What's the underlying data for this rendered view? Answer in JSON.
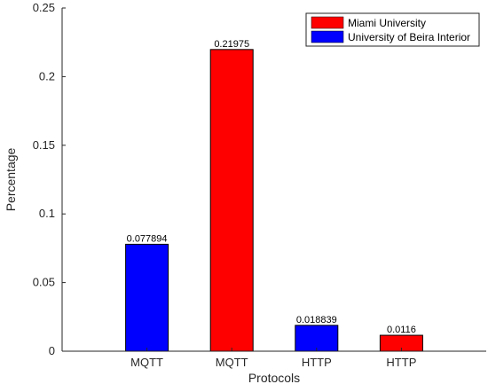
{
  "chart_data": {
    "type": "bar",
    "title": "",
    "xlabel": "Protocols",
    "ylabel": "Percentage",
    "ylim": [
      0,
      0.25
    ],
    "yticks": [
      "0",
      "0.05",
      "0.1",
      "0.15",
      "0.2",
      "0.25"
    ],
    "categories": [
      "MQTT",
      "MQTT",
      "HTTP",
      "HTTP"
    ],
    "bars": [
      {
        "category": "MQTT",
        "value": 0.077894,
        "label": "0.077894",
        "series": "University of Beira Interior",
        "color": "#0000ff"
      },
      {
        "category": "MQTT",
        "value": 0.21975,
        "label": "0.21975",
        "series": "Miami University",
        "color": "#ff0000"
      },
      {
        "category": "HTTP",
        "value": 0.018839,
        "label": "0.018839",
        "series": "University of Beira Interior",
        "color": "#0000ff"
      },
      {
        "category": "HTTP",
        "value": 0.0116,
        "label": "0.0116",
        "series": "Miami University",
        "color": "#ff0000"
      }
    ],
    "legend": {
      "placement": "top-right",
      "items": [
        {
          "name": "Miami University",
          "color": "#ff0000"
        },
        {
          "name": "University of Beira Interior",
          "color": "#0000ff"
        }
      ]
    },
    "grid": false
  }
}
